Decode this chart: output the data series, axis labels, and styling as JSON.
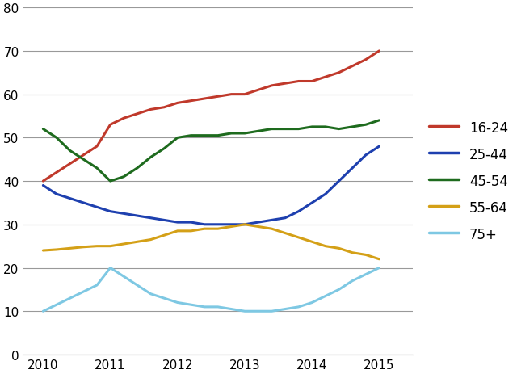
{
  "title": "",
  "xlabel": "",
  "ylabel": "",
  "xlim": [
    2009.7,
    2015.5
  ],
  "ylim": [
    0,
    80
  ],
  "yticks": [
    0,
    10,
    20,
    30,
    40,
    50,
    60,
    70,
    80
  ],
  "xticks": [
    2010,
    2011,
    2012,
    2013,
    2014,
    2015
  ],
  "series": {
    "16-24": {
      "color": "#c0392b",
      "x": [
        2010,
        2010.2,
        2010.4,
        2010.6,
        2010.8,
        2011,
        2011.2,
        2011.4,
        2011.6,
        2011.8,
        2012,
        2012.2,
        2012.4,
        2012.6,
        2012.8,
        2013,
        2013.2,
        2013.4,
        2013.6,
        2013.8,
        2014,
        2014.2,
        2014.4,
        2014.6,
        2014.8,
        2015
      ],
      "y": [
        40,
        42,
        44,
        46,
        48,
        53,
        54.5,
        55.5,
        56.5,
        57,
        58,
        58.5,
        59,
        59.5,
        60,
        60,
        61,
        62,
        62.5,
        63,
        63,
        64,
        65,
        66.5,
        68,
        70
      ]
    },
    "25-44": {
      "color": "#1e40af",
      "x": [
        2010,
        2010.2,
        2010.4,
        2010.6,
        2010.8,
        2011,
        2011.2,
        2011.4,
        2011.6,
        2011.8,
        2012,
        2012.2,
        2012.4,
        2012.6,
        2012.8,
        2013,
        2013.2,
        2013.4,
        2013.6,
        2013.8,
        2014,
        2014.2,
        2014.4,
        2014.6,
        2014.8,
        2015
      ],
      "y": [
        39,
        37,
        36,
        35,
        34,
        33,
        32.5,
        32,
        31.5,
        31,
        30.5,
        30.5,
        30,
        30,
        30,
        30,
        30.5,
        31,
        31.5,
        33,
        35,
        37,
        40,
        43,
        46,
        48
      ]
    },
    "45-54": {
      "color": "#1e6b1e",
      "x": [
        2010,
        2010.2,
        2010.4,
        2010.6,
        2010.8,
        2011,
        2011.2,
        2011.4,
        2011.6,
        2011.8,
        2012,
        2012.2,
        2012.4,
        2012.6,
        2012.8,
        2013,
        2013.2,
        2013.4,
        2013.6,
        2013.8,
        2014,
        2014.2,
        2014.4,
        2014.6,
        2014.8,
        2015
      ],
      "y": [
        52,
        50,
        47,
        45,
        43,
        40,
        41,
        43,
        45.5,
        47.5,
        50,
        50.5,
        50.5,
        50.5,
        51,
        51,
        51.5,
        52,
        52,
        52,
        52.5,
        52.5,
        52,
        52.5,
        53,
        54
      ]
    },
    "55-64": {
      "color": "#d4a017",
      "x": [
        2010,
        2010.2,
        2010.4,
        2010.6,
        2010.8,
        2011,
        2011.2,
        2011.4,
        2011.6,
        2011.8,
        2012,
        2012.2,
        2012.4,
        2012.6,
        2012.8,
        2013,
        2013.2,
        2013.4,
        2013.6,
        2013.8,
        2014,
        2014.2,
        2014.4,
        2014.6,
        2014.8,
        2015
      ],
      "y": [
        24,
        24.2,
        24.5,
        24.8,
        25,
        25,
        25.5,
        26,
        26.5,
        27.5,
        28.5,
        28.5,
        29,
        29,
        29.5,
        30,
        29.5,
        29,
        28,
        27,
        26,
        25,
        24.5,
        23.5,
        23,
        22
      ]
    },
    "75+": {
      "color": "#7ec8e3",
      "x": [
        2010,
        2010.2,
        2010.4,
        2010.6,
        2010.8,
        2011,
        2011.2,
        2011.4,
        2011.6,
        2011.8,
        2012,
        2012.2,
        2012.4,
        2012.6,
        2012.8,
        2013,
        2013.2,
        2013.4,
        2013.6,
        2013.8,
        2014,
        2014.2,
        2014.4,
        2014.6,
        2014.8,
        2015
      ],
      "y": [
        10,
        11.5,
        13,
        14.5,
        16,
        20,
        18,
        16,
        14,
        13,
        12,
        11.5,
        11,
        11,
        10.5,
        10,
        10,
        10,
        10.5,
        11,
        12,
        13.5,
        15,
        17,
        18.5,
        20
      ]
    }
  },
  "legend_order": [
    "16-24",
    "25-44",
    "45-54",
    "55-64",
    "75+"
  ],
  "background_color": "#ffffff",
  "grid_color": "#999999",
  "line_width": 2.2
}
